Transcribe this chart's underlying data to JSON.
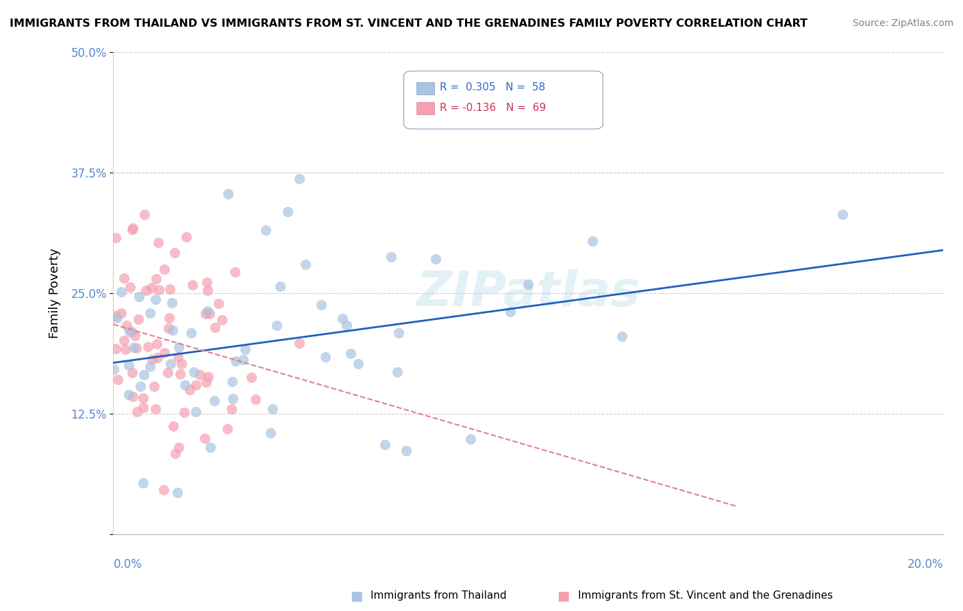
{
  "title": "IMMIGRANTS FROM THAILAND VS IMMIGRANTS FROM ST. VINCENT AND THE GRENADINES FAMILY POVERTY CORRELATION CHART",
  "source": "Source: ZipAtlas.com",
  "ylabel": "Family Poverty",
  "xlim": [
    0.0,
    0.2
  ],
  "ylim": [
    0.0,
    0.5
  ],
  "watermark": "ZIPatlas",
  "color_thailand": "#a8c4e0",
  "color_stvincent": "#f4a0b0",
  "color_trendline_thailand": "#2060c0",
  "color_trendline_stvincent": "#e08090",
  "label_thailand": "Immigrants from Thailand",
  "label_stvincent": "Immigrants from St. Vincent and the Grenadines"
}
